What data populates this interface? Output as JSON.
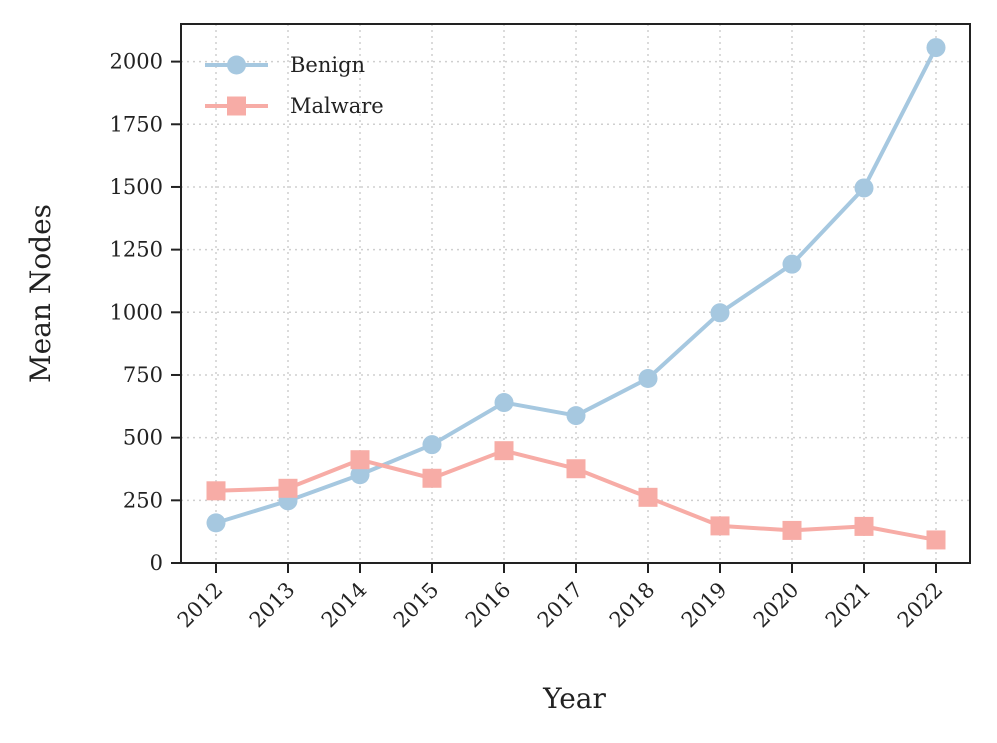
{
  "chart_data": {
    "type": "line",
    "title": "",
    "xlabel": "Year",
    "ylabel": "Mean Nodes",
    "x": [
      "2012",
      "2013",
      "2014",
      "2015",
      "2016",
      "2017",
      "2018",
      "2019",
      "2020",
      "2021",
      "2022"
    ],
    "ylim": [
      0,
      2150
    ],
    "yticks": [
      0,
      250,
      500,
      750,
      1000,
      1250,
      1500,
      1750,
      2000
    ],
    "grid": true,
    "legend_position": "top-left",
    "series": [
      {
        "name": "Benign",
        "marker": "circle",
        "color": "#a6c8e0",
        "values": [
          160,
          248,
          352,
          472,
          640,
          588,
          736,
          998,
          1192,
          1496,
          2056
        ]
      },
      {
        "name": "Malware",
        "marker": "square",
        "color": "#f7aca6",
        "values": [
          288,
          298,
          412,
          338,
          448,
          376,
          262,
          148,
          130,
          146,
          92
        ]
      }
    ]
  }
}
